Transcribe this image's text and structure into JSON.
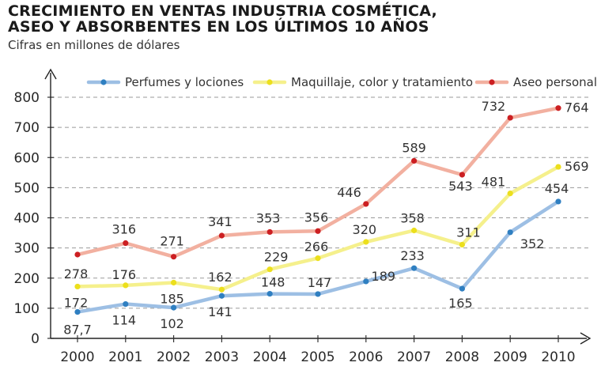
{
  "chart_data": {
    "type": "line",
    "title_lines": [
      "CRECIMIENTO EN VENTAS INDUSTRIA COSMÉTICA,",
      "ASEO Y ABSORBENTES EN LOS ÚLTIMOS 10 AÑOS"
    ],
    "subtitle": "Cifras en millones de dólares",
    "x": [
      "2000",
      "2001",
      "2002",
      "2003",
      "2004",
      "2005",
      "2006",
      "2007",
      "2008",
      "2009",
      "2010"
    ],
    "ylim": [
      0,
      800
    ],
    "yticks": [
      "0",
      "100",
      "200",
      "300",
      "400",
      "500",
      "600",
      "700",
      "800"
    ],
    "grid": "horizontal dashed",
    "legend_position": "top",
    "series": [
      {
        "name": "Perfumes y lociones",
        "line_color": "#9dbfe4",
        "marker_color": "#2f7fc1",
        "values": [
          87.7,
          114,
          102,
          141,
          148,
          147,
          189,
          233,
          165,
          352,
          454
        ],
        "labels": [
          "87,7",
          "114",
          "102",
          "141",
          "148",
          "147",
          "189",
          "233",
          "165",
          "352",
          "454"
        ]
      },
      {
        "name": "Maquillaje, color y tratamiento",
        "line_color": "#f5f08c",
        "marker_color": "#ecdf1c",
        "values": [
          172,
          176,
          185,
          162,
          229,
          266,
          320,
          358,
          311,
          481,
          569
        ],
        "labels": [
          "172",
          "176",
          "185",
          "162",
          "229",
          "266",
          "320",
          "358",
          "311",
          "481",
          "569"
        ]
      },
      {
        "name": "Aseo personal",
        "line_color": "#f2b0a0",
        "marker_color": "#cc1f22",
        "values": [
          278,
          316,
          271,
          341,
          353,
          356,
          446,
          589,
          543,
          732,
          764
        ],
        "labels": [
          "278",
          "316",
          "271",
          "341",
          "353",
          "356",
          "446",
          "589",
          "543",
          "732",
          "764"
        ]
      }
    ]
  }
}
